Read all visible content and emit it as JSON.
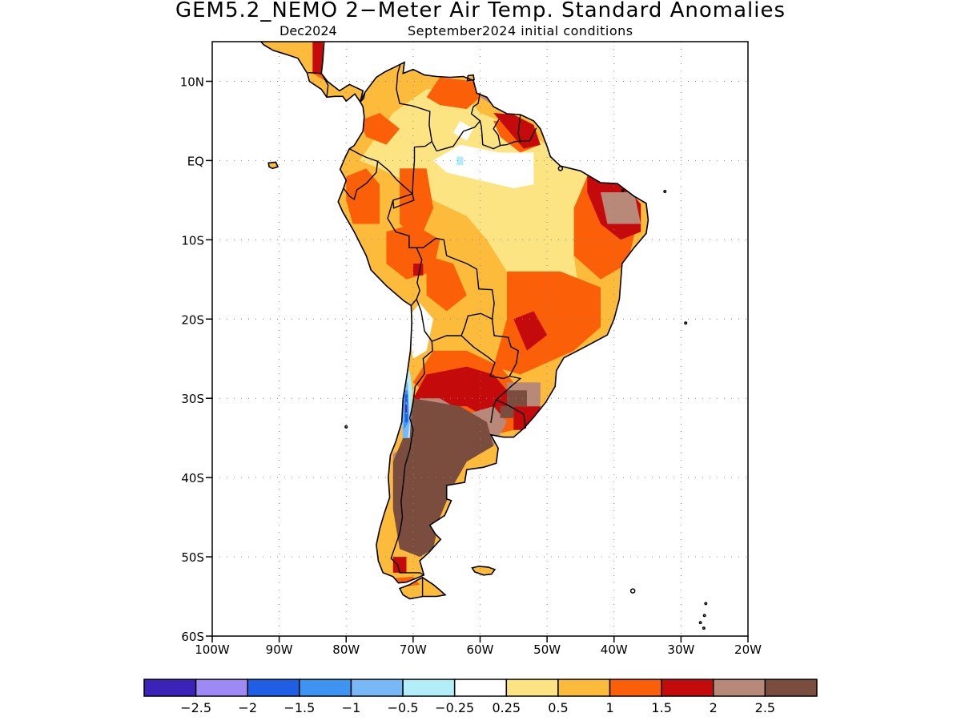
{
  "title": "GEM5.2_NEMO 2−Meter Air Temp. Standard Anomalies",
  "subtitle_left": "Dec2024",
  "subtitle_right": "September2024 initial conditions",
  "map": {
    "region": "South America",
    "projection": "lat-lon",
    "lon_range": [
      -100,
      -20
    ],
    "lat_range": [
      -60,
      15
    ],
    "grid": "dotted",
    "lat_ticks": [
      {
        "value": 10,
        "label": "10N"
      },
      {
        "value": 0,
        "label": "EQ"
      },
      {
        "value": -10,
        "label": "10S"
      },
      {
        "value": -20,
        "label": "20S"
      },
      {
        "value": -30,
        "label": "30S"
      },
      {
        "value": -40,
        "label": "40S"
      },
      {
        "value": -50,
        "label": "50S"
      },
      {
        "value": -60,
        "label": "60S"
      }
    ],
    "lon_ticks": [
      {
        "value": -100,
        "label": "100W"
      },
      {
        "value": -90,
        "label": "90W"
      },
      {
        "value": -80,
        "label": "80W"
      },
      {
        "value": -70,
        "label": "70W"
      },
      {
        "value": -60,
        "label": "60W"
      },
      {
        "value": -50,
        "label": "50W"
      },
      {
        "value": -40,
        "label": "40W"
      },
      {
        "value": -30,
        "label": "30W"
      },
      {
        "value": -20,
        "label": "20W"
      }
    ]
  },
  "colorbar": {
    "colors": [
      "#3b22b9",
      "#9e8af5",
      "#1f5fe6",
      "#3d94f2",
      "#78b8f6",
      "#b2eef8",
      "#ffffff",
      "#fde482",
      "#fdbb3c",
      "#fb6008",
      "#c40a0a",
      "#b88879",
      "#7b4d3f"
    ],
    "labels": [
      "−2.5",
      "−2",
      "−1.5",
      "−1",
      "−0.5",
      "−0.25",
      "0.25",
      "0.5",
      "1",
      "1.5",
      "2",
      "2.5"
    ]
  }
}
